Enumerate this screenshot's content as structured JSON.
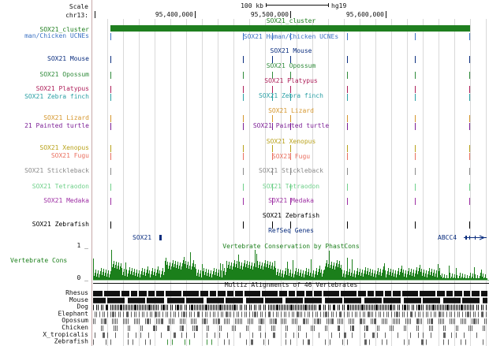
{
  "scale": {
    "label": "Scale",
    "value": "100 kb",
    "assembly": "hg19"
  },
  "chromosome": {
    "label": "chr13:",
    "ticks": [
      {
        "label": "95,400,000",
        "position": 95400000
      },
      {
        "label": "95,500,000",
        "position": 95500000
      },
      {
        "label": "95,600,000",
        "position": 95600000
      }
    ]
  },
  "colors": {
    "guide": "#d9d9d9",
    "label_border": "#c8a8a8",
    "conservation": "#1b7f1b",
    "multiz": "#000000",
    "refseq": "#0b2e7f",
    "cluster": "#1f7f1f"
  },
  "tracks": [
    {
      "left": "SOX21_cluster",
      "center": "SOX21_cluster",
      "color": "#1f7f1f"
    },
    {
      "left": "man/Chicken UCNEs",
      "center": "SOX21 Human/Chicken UCNEs",
      "color": "#3d73c4"
    },
    {
      "left": "SOX21 Mouse",
      "center": "SOX21 Mouse",
      "color": "#0b2e7f"
    },
    {
      "left": "SOX21 Opossum",
      "center": "SOX21 Opossum",
      "color": "#2f8b3a"
    },
    {
      "left": "SOX21 Platypus",
      "center": "SOX21 Platypus",
      "color": "#ae1e59"
    },
    {
      "left": "SOX21 Zebra finch",
      "center": "SOX21 Zebra finch",
      "color": "#2a9fa4"
    },
    {
      "left": "SOX21 Lizard",
      "center": "SOX21 Lizard",
      "color": "#d5962c"
    },
    {
      "left": "21 Painted turtle",
      "center": "SOX21 Painted turtle",
      "color": "#7c1f96"
    },
    {
      "left": "SOX21 Xenopus",
      "center": "SOX21 Xenopus",
      "color": "#b9a21a"
    },
    {
      "left": "SOX21 Fugu",
      "center": "SOX21 Fugu",
      "color": "#ea7060"
    },
    {
      "left": "SOX21 Stickleback",
      "center": "SOX21 Stickleback",
      "color": "#8a8a8a"
    },
    {
      "left": "SOX21 Tetraodon",
      "center": "SOX21 Tetraodon",
      "color": "#6fd08a"
    },
    {
      "left": "SOX21 Medaka",
      "center": "SOX21 Medaka",
      "color": "#9d2ea3"
    },
    {
      "left": "SOX21 Zebrafish",
      "center": "SOX21 Zebrafish",
      "color": "#000000"
    }
  ],
  "refseq": {
    "label": "RefSeq Genes",
    "genes": [
      "SOX21",
      "ABCC4"
    ]
  },
  "conservation": {
    "title": "Vertebrate Conservation by PhastCons",
    "left_label": "Vertebrate Cons",
    "max": "1 _",
    "min": "0 _"
  },
  "multiz": {
    "title": "Multiz Alignments of 46 Vertebrates",
    "species": [
      "Rhesus",
      "Mouse",
      "Dog",
      "Elephant",
      "Opossum",
      "Chicken",
      "X_tropicalis",
      "Zebrafish"
    ]
  }
}
